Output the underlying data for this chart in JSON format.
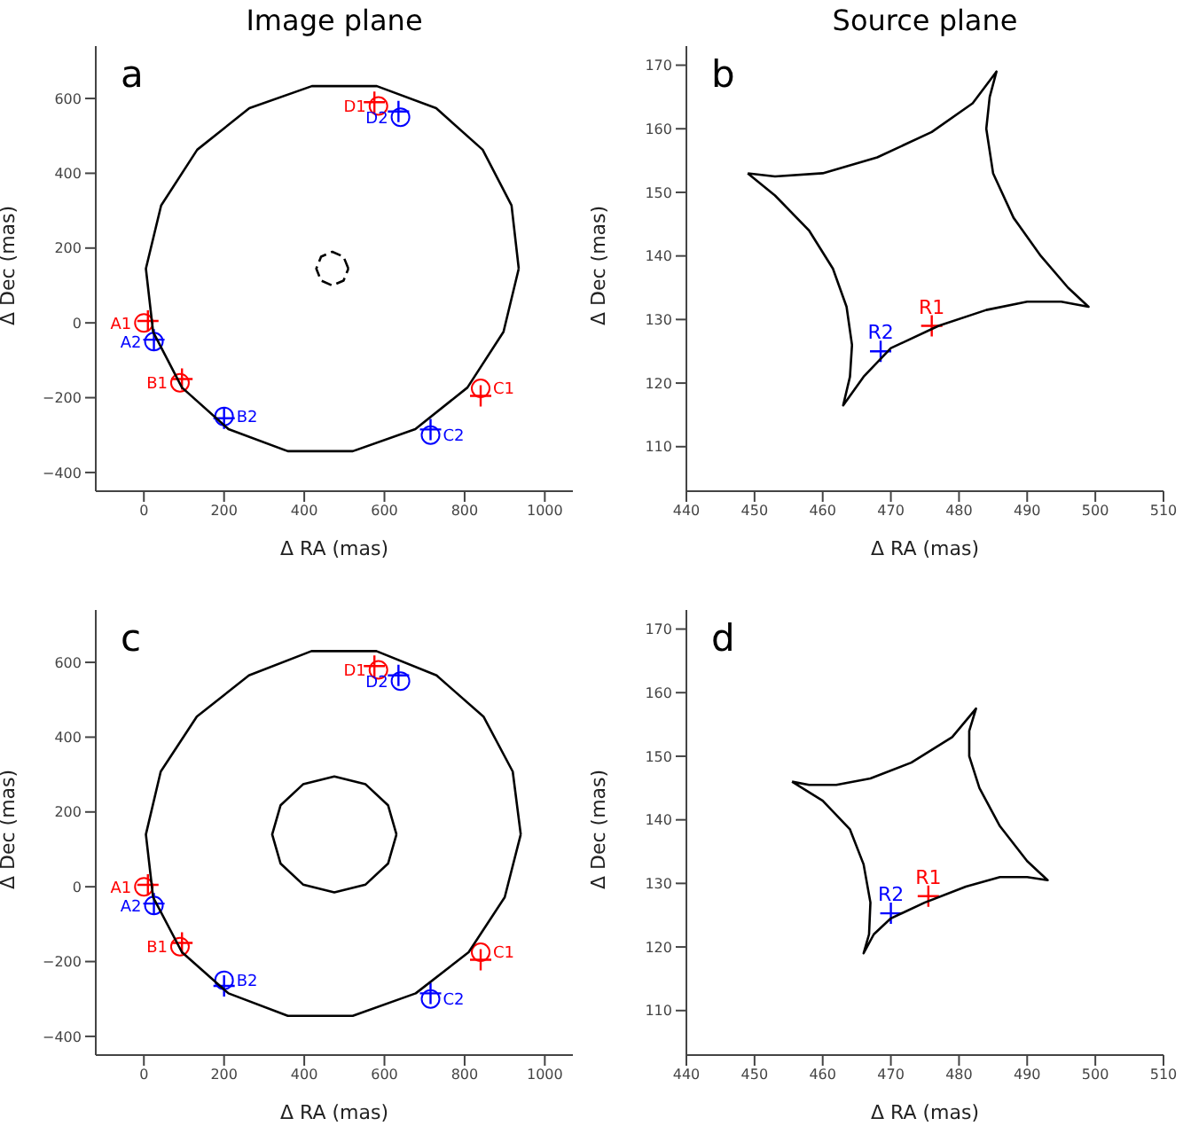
{
  "chart_data": [
    {
      "type": "scatter",
      "title": "Image plane",
      "xlabel": "Δ RA (mas)",
      "ylabel": "Δ Dec (mas)",
      "xlim": [
        -120,
        1070
      ],
      "ylim": [
        -450,
        740
      ],
      "xticks": [
        0,
        200,
        400,
        600,
        800,
        1000
      ],
      "yticks": [
        -400,
        -200,
        0,
        200,
        400,
        600
      ],
      "annotations": [
        "a",
        {
          "text": "A1",
          "x": 0,
          "y": 0
        },
        {
          "text": "B1",
          "x": 90,
          "y": -160
        },
        {
          "text": "C1",
          "x": 840,
          "y": -175
        },
        {
          "text": "D1",
          "x": 585,
          "y": 580
        },
        {
          "text": "A2",
          "x": 25,
          "y": -50
        },
        {
          "text": "B2",
          "x": 200,
          "y": -250
        },
        {
          "text": "C2",
          "x": 715,
          "y": -300
        },
        {
          "text": "D2",
          "x": 640,
          "y": 550
        }
      ],
      "series": [
        {
          "type": "scatter",
          "marker": "circle",
          "color": "#ff0000",
          "x": [
            0,
            90,
            840,
            585
          ],
          "values": [
            0,
            -160,
            -175,
            580
          ]
        },
        {
          "type": "scatter",
          "marker": "cross",
          "color": "#ff0000",
          "x": [
            10,
            95,
            840,
            575
          ],
          "values": [
            5,
            -150,
            -195,
            590
          ]
        },
        {
          "type": "scatter",
          "marker": "circle",
          "color": "#0000ff",
          "x": [
            25,
            200,
            715,
            640
          ],
          "values": [
            -50,
            -250,
            -300,
            550
          ]
        },
        {
          "type": "scatter",
          "marker": "cross",
          "color": "#0000ff",
          "x": [
            25,
            200,
            715,
            635
          ],
          "values": [
            -45,
            -255,
            -285,
            565
          ]
        }
      ]
    },
    {
      "type": "scatter",
      "title": "Source plane",
      "xlabel": "Δ RA (mas)",
      "ylabel": "Δ Dec (mas)",
      "xlim": [
        440,
        510
      ],
      "ylim": [
        103,
        173
      ],
      "xticks": [
        440,
        450,
        460,
        470,
        480,
        490,
        500,
        510
      ],
      "yticks": [
        110,
        120,
        130,
        140,
        150,
        160,
        170
      ],
      "annotations": [
        "b",
        {
          "text": "R1",
          "x": 476,
          "y": 129
        },
        {
          "text": "R2",
          "x": 468.5,
          "y": 125
        }
      ],
      "series": [
        {
          "type": "scatter",
          "marker": "cross",
          "color": "#ff0000",
          "x": [
            476
          ],
          "values": [
            129
          ]
        },
        {
          "type": "scatter",
          "marker": "cross",
          "color": "#0000ff",
          "x": [
            468.5
          ],
          "values": [
            125
          ]
        }
      ]
    },
    {
      "type": "scatter",
      "xlabel": "Δ RA (mas)",
      "ylabel": "Δ Dec (mas)",
      "xlim": [
        -120,
        1070
      ],
      "ylim": [
        -450,
        740
      ],
      "xticks": [
        0,
        200,
        400,
        600,
        800,
        1000
      ],
      "yticks": [
        -400,
        -200,
        0,
        200,
        400,
        600
      ],
      "annotations": [
        "c",
        {
          "text": "A1",
          "x": 0,
          "y": 0
        },
        {
          "text": "B1",
          "x": 90,
          "y": -160
        },
        {
          "text": "C1",
          "x": 840,
          "y": -175
        },
        {
          "text": "D1",
          "x": 585,
          "y": 580
        },
        {
          "text": "A2",
          "x": 25,
          "y": -50
        },
        {
          "text": "B2",
          "x": 200,
          "y": -250
        },
        {
          "text": "C2",
          "x": 715,
          "y": -300
        },
        {
          "text": "D2",
          "x": 640,
          "y": 550
        }
      ],
      "series": [
        {
          "type": "scatter",
          "marker": "circle",
          "color": "#ff0000",
          "x": [
            0,
            90,
            840,
            585
          ],
          "values": [
            0,
            -160,
            -175,
            580
          ]
        },
        {
          "type": "scatter",
          "marker": "cross",
          "color": "#ff0000",
          "x": [
            10,
            95,
            840,
            575
          ],
          "values": [
            5,
            -150,
            -195,
            590
          ]
        },
        {
          "type": "scatter",
          "marker": "circle",
          "color": "#0000ff",
          "x": [
            25,
            200,
            715,
            640
          ],
          "values": [
            -50,
            -250,
            -300,
            550
          ]
        },
        {
          "type": "scatter",
          "marker": "cross",
          "color": "#0000ff",
          "x": [
            25,
            200,
            715,
            635
          ],
          "values": [
            -45,
            -265,
            -285,
            565
          ]
        }
      ]
    },
    {
      "type": "scatter",
      "xlabel": "Δ RA (mas)",
      "ylabel": "Δ Dec (mas)",
      "xlim": [
        440,
        510
      ],
      "ylim": [
        103,
        173
      ],
      "xticks": [
        440,
        450,
        460,
        470,
        480,
        490,
        500,
        510
      ],
      "yticks": [
        110,
        120,
        130,
        140,
        150,
        160,
        170
      ],
      "annotations": [
        "d",
        {
          "text": "R1",
          "x": 475.5,
          "y": 128
        },
        {
          "text": "R2",
          "x": 470,
          "y": 125.3
        }
      ],
      "series": [
        {
          "type": "scatter",
          "marker": "cross",
          "color": "#ff0000",
          "x": [
            475.5
          ],
          "values": [
            128
          ]
        },
        {
          "type": "scatter",
          "marker": "cross",
          "color": "#0000ff",
          "x": [
            470
          ],
          "values": [
            125.3
          ]
        }
      ]
    }
  ]
}
